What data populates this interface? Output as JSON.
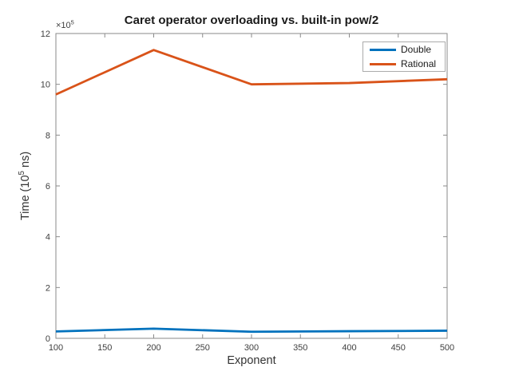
{
  "figure": {
    "background": "#ffffff",
    "ylabel": {
      "prefix": "Time (10",
      "exponent": "5",
      "suffix": " ns)"
    },
    "y_axis_multiplier": {
      "prefix": "×10",
      "exponent": "5"
    }
  },
  "chart_data": {
    "type": "line",
    "title": "Caret operator overloading vs. built-in pow/2",
    "xlabel": "Exponent",
    "ylabel": "Time (10^5 ns)",
    "y_axis_multiplier_label": "×10^5",
    "x": [
      100,
      200,
      300,
      400,
      500
    ],
    "series": [
      {
        "name": "Double",
        "color": "#0072BD",
        "values": [
          0.27,
          0.38,
          0.26,
          0.28,
          0.3
        ]
      },
      {
        "name": "Rational",
        "color": "#D95319",
        "values": [
          9.6,
          11.35,
          10.0,
          10.05,
          10.2
        ]
      }
    ],
    "xlim": [
      100,
      500
    ],
    "ylim": [
      0,
      12
    ],
    "xticks": [
      100,
      150,
      200,
      250,
      300,
      350,
      400,
      450,
      500
    ],
    "yticks": [
      0,
      2,
      4,
      6,
      8,
      10,
      12
    ],
    "grid": false,
    "legend": {
      "position": "top-right",
      "entries": [
        "Double",
        "Rational"
      ]
    },
    "colors": {
      "axis": "#8a8a8a",
      "tick_text": "#404040",
      "title_text": "#1a1a1a",
      "background": "#ffffff"
    }
  }
}
